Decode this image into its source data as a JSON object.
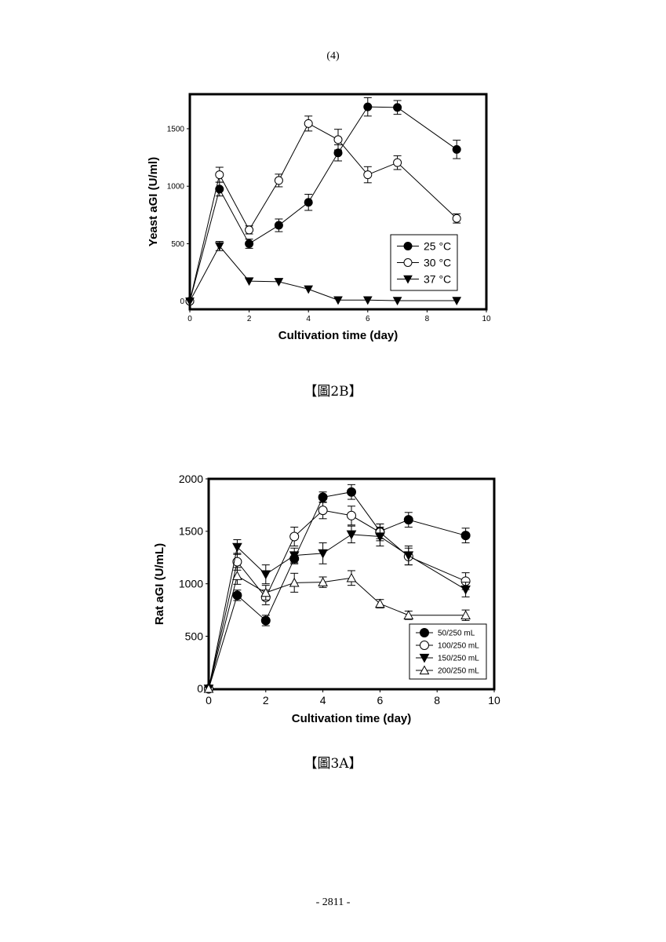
{
  "page": {
    "header_number": "(4)",
    "footer_number": "- 2811 -"
  },
  "figures": [
    {
      "caption": "【圖2B】"
    },
    {
      "caption": "【圖3A】"
    }
  ],
  "chart_data": [
    {
      "type": "line",
      "xlabel": "Cultivation time (day)",
      "ylabel": "Yeast aGI (U/ml)",
      "xlim": [
        0,
        10
      ],
      "ylim": [
        -70,
        1800
      ],
      "xticks": [
        0,
        2,
        4,
        6,
        8,
        10
      ],
      "yticks": [
        0,
        500,
        1000,
        1500
      ],
      "legend_position": "lower-right",
      "grid": false,
      "series": [
        {
          "name": "25 °C",
          "marker": "filled-circle",
          "x": [
            0,
            1,
            2,
            3,
            4,
            5,
            6,
            7,
            9
          ],
          "y": [
            0,
            975,
            500,
            660,
            860,
            1290,
            1690,
            1685,
            1320
          ],
          "err": [
            0,
            60,
            40,
            55,
            70,
            70,
            80,
            60,
            80
          ]
        },
        {
          "name": "30 °C",
          "marker": "open-circle",
          "x": [
            0,
            1,
            2,
            3,
            4,
            5,
            6,
            7,
            9
          ],
          "y": [
            0,
            1100,
            620,
            1050,
            1545,
            1405,
            1100,
            1205,
            720
          ],
          "err": [
            0,
            65,
            35,
            55,
            65,
            90,
            70,
            60,
            40
          ]
        },
        {
          "name": "37 °C",
          "marker": "filled-triangle-down",
          "x": [
            0,
            1,
            2,
            3,
            4,
            5,
            6,
            7,
            9
          ],
          "y": [
            0,
            480,
            175,
            170,
            105,
            10,
            10,
            5,
            5
          ],
          "err": [
            0,
            40,
            0,
            0,
            0,
            0,
            0,
            0,
            0
          ]
        }
      ]
    },
    {
      "type": "line",
      "xlabel": "Cultivation time (day)",
      "ylabel": "Rat aGI (U/mL)",
      "xlim": [
        0,
        10
      ],
      "ylim": [
        -5,
        2000
      ],
      "xticks": [
        0,
        2,
        4,
        6,
        8,
        10
      ],
      "yticks": [
        0,
        500,
        1000,
        1500,
        2000
      ],
      "legend_position": "lower-right",
      "grid": false,
      "series": [
        {
          "name": "50/250 mL",
          "marker": "filled-circle",
          "x": [
            0,
            1,
            2,
            3,
            4,
            5,
            6,
            7,
            9
          ],
          "y": [
            0,
            890,
            650,
            1240,
            1825,
            1875,
            1500,
            1610,
            1460
          ],
          "err": [
            0,
            50,
            50,
            50,
            50,
            70,
            70,
            70,
            70
          ]
        },
        {
          "name": "100/250 mL",
          "marker": "open-circle",
          "x": [
            0,
            1,
            2,
            3,
            4,
            5,
            6,
            7,
            9
          ],
          "y": [
            0,
            1210,
            870,
            1450,
            1700,
            1650,
            1490,
            1260,
            1025
          ],
          "err": [
            0,
            80,
            70,
            90,
            80,
            90,
            80,
            80,
            80
          ]
        },
        {
          "name": "150/250 mL",
          "marker": "filled-triangle-down",
          "x": [
            0,
            1,
            2,
            3,
            4,
            5,
            6,
            7,
            9
          ],
          "y": [
            0,
            1350,
            1090,
            1270,
            1290,
            1470,
            1450,
            1270,
            945
          ],
          "err": [
            0,
            70,
            90,
            70,
            100,
            80,
            90,
            90,
            70
          ]
        },
        {
          "name": "200/250 mL",
          "marker": "open-triangle-up",
          "x": [
            0,
            1,
            2,
            3,
            4,
            5,
            6,
            7,
            9
          ],
          "y": [
            0,
            1075,
            915,
            1010,
            1015,
            1055,
            810,
            700,
            700
          ],
          "err": [
            0,
            80,
            70,
            90,
            50,
            70,
            40,
            40,
            50
          ]
        }
      ]
    }
  ]
}
